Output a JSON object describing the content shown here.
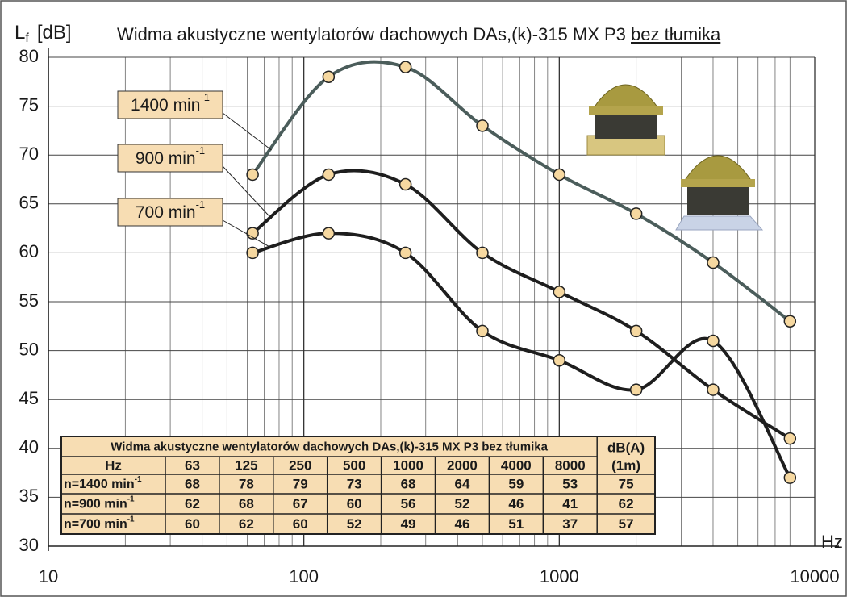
{
  "chart_data": {
    "type": "line",
    "title": {
      "text": "Widma akustyczne wentylatorów dachowych DAs,(k)-315 MX P3 ",
      "underlined": "bez tłumika"
    },
    "y_label": {
      "main": "L",
      "sub": "f",
      "unit": "[dB]"
    },
    "x_label": "Hz",
    "log_x": true,
    "grid": true,
    "x": [
      63,
      125,
      250,
      500,
      1000,
      2000,
      4000,
      8000
    ],
    "xlim": [
      10,
      10000
    ],
    "xticks": [
      10,
      100,
      1000,
      10000
    ],
    "ylim": [
      30,
      80
    ],
    "yticks": [
      30,
      35,
      40,
      45,
      50,
      55,
      60,
      65,
      70,
      75,
      80
    ],
    "series": [
      {
        "name": {
          "text": "1400 min",
          "sup": "-1"
        },
        "color": "#4b5d5b",
        "values": [
          68,
          78,
          79,
          73,
          68,
          64,
          59,
          53
        ],
        "dba": 75
      },
      {
        "name": {
          "text": "900 min",
          "sup": "-1"
        },
        "color": "#1e1e1e",
        "values": [
          62,
          68,
          67,
          60,
          56,
          52,
          46,
          41
        ],
        "dba": 62
      },
      {
        "name": {
          "text": "700 min",
          "sup": "-1"
        },
        "color": "#1e1e1e",
        "values": [
          60,
          62,
          60,
          52,
          49,
          46,
          51,
          37
        ],
        "dba": 57
      }
    ],
    "table": {
      "title": "Widma akustyczne wentylatorów dachowych DAs,(k)-315 MX P3 bez tłumika",
      "hz_label": "Hz",
      "dba_header": [
        "dB(A)",
        "(1m)"
      ],
      "row_prefix": "n="
    }
  }
}
